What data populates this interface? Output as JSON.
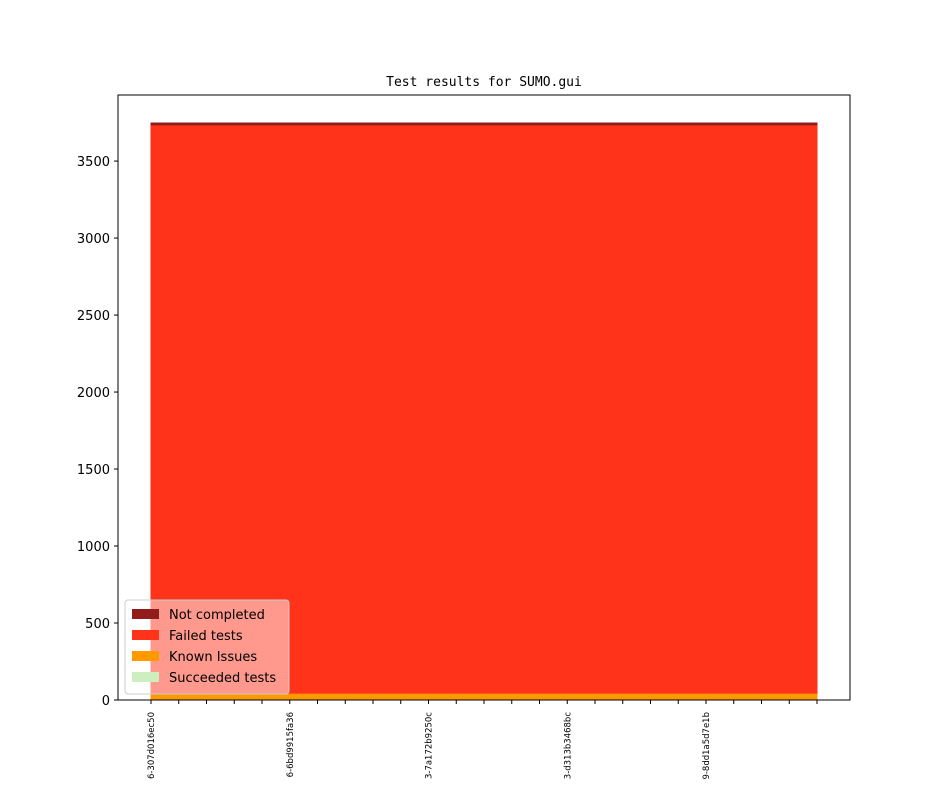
{
  "chart_data": {
    "type": "stacked-area",
    "title": "Test results for SUMO.gui",
    "categories": [
      "6-307d016ec50",
      null,
      null,
      null,
      null,
      "6-6bd9915fa36",
      null,
      null,
      null,
      null,
      "3-7a172b9250c",
      null,
      null,
      null,
      null,
      "3-d313b3468bc",
      null,
      null,
      null,
      null,
      "9-8dd1a5d7e1b",
      null,
      null,
      null,
      null
    ],
    "series": [
      {
        "name": "Succeeded tests",
        "color": "#cdeebe",
        "values": [
          0,
          0,
          0,
          0,
          0,
          0,
          0,
          0,
          0,
          0,
          0,
          0,
          0,
          0,
          0,
          0,
          0,
          0,
          0,
          0,
          0,
          0,
          0,
          0,
          0
        ]
      },
      {
        "name": "Known Issues",
        "color": "#ff9900",
        "values": [
          45,
          45,
          45,
          45,
          45,
          45,
          45,
          45,
          45,
          45,
          45,
          45,
          45,
          45,
          45,
          45,
          45,
          45,
          45,
          45,
          45,
          45,
          45,
          45,
          45
        ]
      },
      {
        "name": "Failed tests",
        "color": "#ff321a",
        "values": [
          3690,
          3690,
          3690,
          3690,
          3690,
          3690,
          3690,
          3690,
          3690,
          3690,
          3690,
          3690,
          3690,
          3690,
          3690,
          3690,
          3690,
          3690,
          3690,
          3690,
          3690,
          3690,
          3690,
          3690,
          3690
        ]
      },
      {
        "name": "Not completed",
        "color": "#921c1c",
        "values": [
          12,
          12,
          12,
          12,
          12,
          12,
          12,
          12,
          12,
          12,
          12,
          12,
          12,
          12,
          12,
          12,
          12,
          12,
          12,
          12,
          12,
          12,
          12,
          12,
          12
        ]
      }
    ],
    "ylim": [
      0,
      3929
    ],
    "yticks": [
      0,
      500,
      1000,
      1500,
      2000,
      2500,
      3000,
      3500
    ],
    "legend": "lower left"
  }
}
